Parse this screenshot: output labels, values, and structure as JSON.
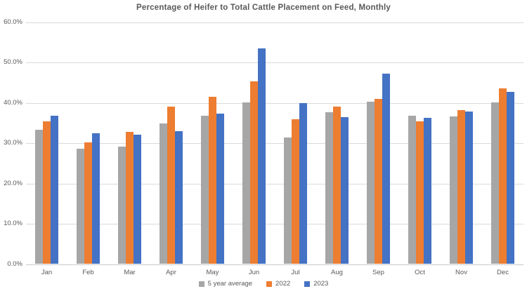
{
  "title": "Percentage of Heifer to Total Cattle Placement on Feed, Monthly",
  "chart_data": {
    "type": "bar",
    "title": "Percentage of Heifer to Total Cattle Placement on Feed, Monthly",
    "categories": [
      "Jan",
      "Feb",
      "Mar",
      "Apr",
      "May",
      "Jun",
      "Jul",
      "Aug",
      "Sep",
      "Oct",
      "Nov",
      "Dec"
    ],
    "series": [
      {
        "name": "5 year average",
        "color": "#A6A6A6",
        "values": [
          33.4,
          28.6,
          29.1,
          35.0,
          36.8,
          40.1,
          31.5,
          37.7,
          40.3,
          36.8,
          36.7,
          40.2
        ]
      },
      {
        "name": "2022",
        "color": "#ED7D31",
        "values": [
          35.4,
          30.2,
          32.8,
          39.1,
          41.5,
          45.3,
          35.9,
          39.1,
          41.1,
          35.5,
          38.3,
          43.6
        ]
      },
      {
        "name": "2023",
        "color": "#4472C4",
        "values": [
          36.9,
          32.4,
          32.1,
          33.0,
          37.3,
          53.6,
          40.0,
          36.5,
          47.2,
          36.3,
          37.9,
          42.7
        ]
      }
    ],
    "xlabel": "",
    "ylabel": "",
    "ylim": [
      0,
      60
    ],
    "ytick_step": 10,
    "ytick_labels": [
      "0.0%",
      "10.0%",
      "20.0%",
      "30.0%",
      "40.0%",
      "50.0%",
      "60.0%"
    ],
    "grid": true,
    "legend_position": "bottom"
  },
  "colors": {
    "grid": "#D9D9D9",
    "axis_text": "#595959",
    "title_text": "#595959",
    "background": "#FFFFFF"
  }
}
